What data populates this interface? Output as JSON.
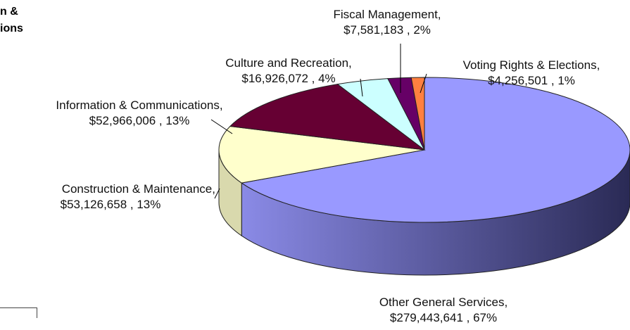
{
  "title_fragments": [
    "n &",
    "ions"
  ],
  "chart_data": {
    "type": "pie",
    "title": "",
    "slices": [
      {
        "label": "Other General Services,",
        "value": 279443641,
        "value_text": "$279,443,641 , 67%",
        "percent": 67,
        "color": "#9999FF"
      },
      {
        "label": "Construction & Maintenance,",
        "value": 53126658,
        "value_text": "$53,126,658 , 13%",
        "percent": 13,
        "color": "#FFFFCC"
      },
      {
        "label": "Information & Communications,",
        "value": 52966006,
        "value_text": "$52,966,006 , 13%",
        "percent": 13,
        "color": "#660033"
      },
      {
        "label": "Culture and Recreation,",
        "value": 16926072,
        "value_text": "$16,926,072 , 4%",
        "percent": 4,
        "color": "#CCFFFF"
      },
      {
        "label": "Fiscal Management,",
        "value": 7581183,
        "value_text": "$7,581,183 , 2%",
        "percent": 2,
        "color": "#660066"
      },
      {
        "label": "Voting Rights & Elections,",
        "value": 4256501,
        "value_text": "$4,256,501 , 1%",
        "percent": 1,
        "color": "#FF8040"
      }
    ]
  }
}
